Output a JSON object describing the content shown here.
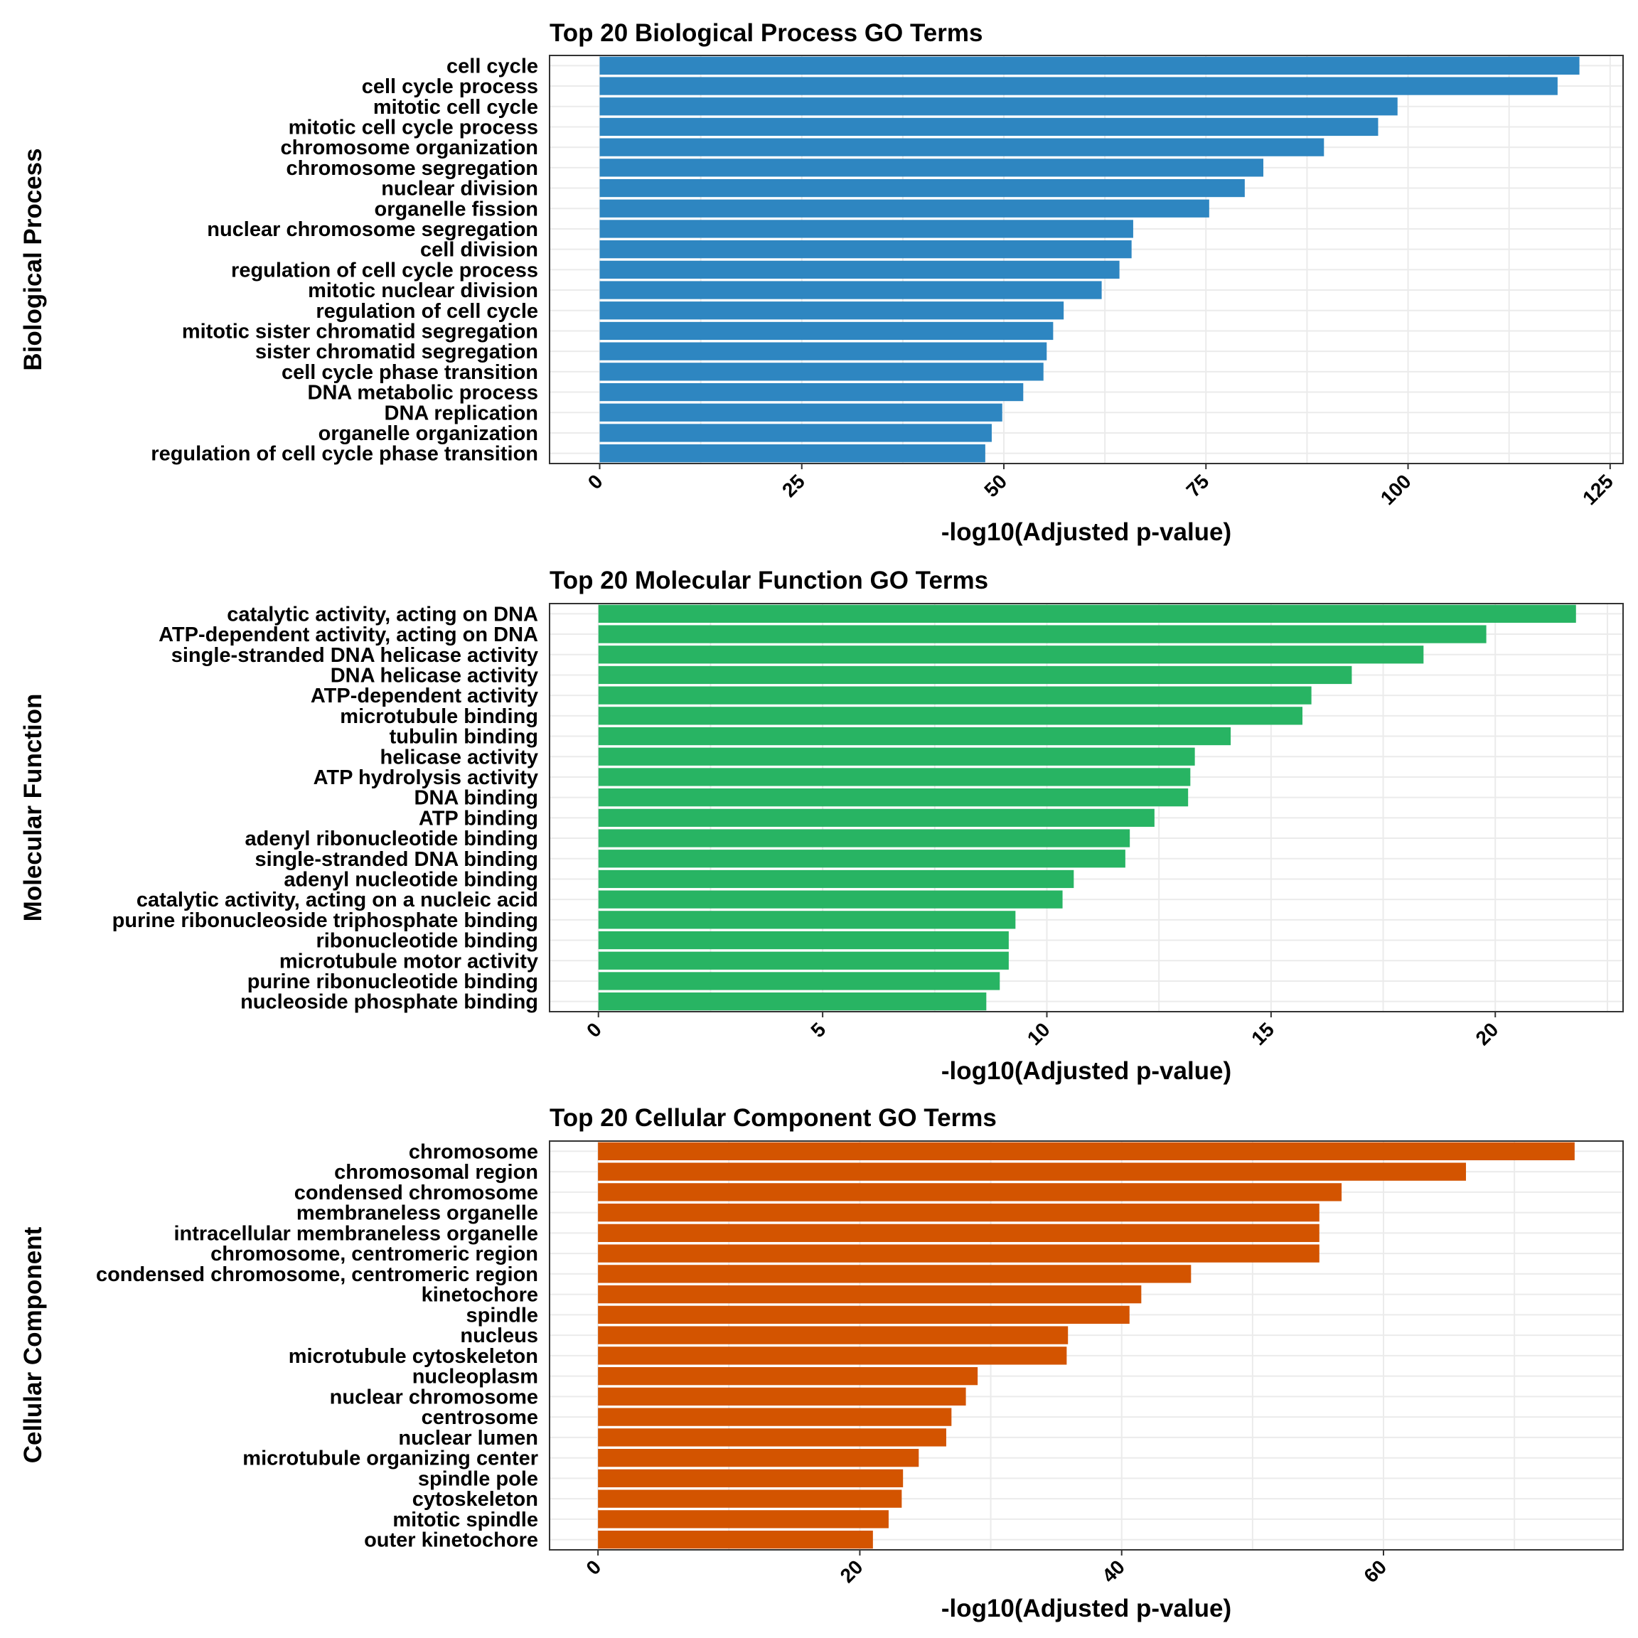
{
  "chart_data": [
    {
      "type": "bar",
      "orientation": "horizontal",
      "title": "Top 20 Biological Process GO Terms",
      "xlabel": "-log10(Adjusted p-value)",
      "ylabel": "Biological Process",
      "xlim": [
        -6.2,
        126.6
      ],
      "xticks": [
        0,
        25,
        50,
        75,
        100,
        125
      ],
      "color": "#2E86C1",
      "grid": true,
      "categories": [
        "cell cycle",
        "cell cycle process",
        "mitotic cell cycle",
        "mitotic cell cycle process",
        "chromosome organization",
        "chromosome segregation",
        "nuclear division",
        "organelle fission",
        "nuclear chromosome segregation",
        "cell division",
        "regulation of cell cycle process",
        "mitotic nuclear division",
        "regulation of cell cycle",
        "mitotic sister chromatid segregation",
        "sister chromatid segregation",
        "cell cycle phase transition",
        "DNA metabolic process",
        "DNA replication",
        "organelle organization",
        "regulation of cell cycle phase transition"
      ],
      "values": [
        121.2,
        118.5,
        98.7,
        96.3,
        89.6,
        82.1,
        79.8,
        75.4,
        66.0,
        65.8,
        64.3,
        62.1,
        57.4,
        56.1,
        55.3,
        54.9,
        52.4,
        49.8,
        48.5,
        47.7
      ]
    },
    {
      "type": "bar",
      "orientation": "horizontal",
      "title": "Top 20 Molecular Function GO Terms",
      "xlabel": "-log10(Adjusted p-value)",
      "ylabel": "Molecular Function",
      "xlim": [
        -1.09,
        22.85
      ],
      "xticks": [
        0,
        5,
        10,
        15,
        20
      ],
      "color": "#28B463",
      "grid": true,
      "categories": [
        "catalytic activity, acting on DNA",
        "ATP-dependent activity, acting on DNA",
        "single-stranded DNA helicase activity",
        "DNA helicase activity",
        "ATP-dependent activity",
        "microtubule binding",
        "tubulin binding",
        "helicase activity",
        "ATP hydrolysis activity",
        "DNA binding",
        "ATP binding",
        "adenyl ribonucleotide binding",
        "single-stranded DNA binding",
        "adenyl nucleotide binding",
        "catalytic activity, acting on a nucleic acid",
        "purine ribonucleoside triphosphate binding",
        "ribonucleotide binding",
        "microtubule motor activity",
        "purine ribonucleotide binding",
        "nucleoside phosphate binding"
      ],
      "values": [
        21.8,
        19.8,
        18.4,
        16.8,
        15.9,
        15.7,
        14.1,
        13.3,
        13.2,
        13.15,
        12.4,
        11.85,
        11.75,
        10.6,
        10.35,
        9.3,
        9.15,
        9.15,
        8.95,
        8.65
      ]
    },
    {
      "type": "bar",
      "orientation": "horizontal",
      "title": "Top 20 Cellular Component GO Terms",
      "xlabel": "-log10(Adjusted p-value)",
      "ylabel": "Cellular Component",
      "xlim": [
        -3.7,
        78.3
      ],
      "xticks": [
        0,
        20,
        40,
        60
      ],
      "color": "#D35400",
      "grid": true,
      "categories": [
        "chromosome",
        "chromosomal region",
        "condensed chromosome",
        "membraneless organelle",
        "intracellular membraneless organelle",
        "chromosome, centromeric region",
        "condensed chromosome, centromeric region",
        "kinetochore",
        "spindle",
        "nucleus",
        "microtubule cytoskeleton",
        "nucleoplasm",
        "nuclear chromosome",
        "centrosome",
        "nuclear lumen",
        "microtubule organizing center",
        "spindle pole",
        "cytoskeleton",
        "mitotic spindle",
        "outer kinetochore"
      ],
      "values": [
        74.6,
        66.3,
        56.8,
        55.1,
        55.1,
        55.1,
        45.3,
        41.5,
        40.6,
        35.9,
        35.8,
        29.0,
        28.1,
        27.0,
        26.6,
        24.5,
        23.3,
        23.2,
        22.2,
        21.0
      ]
    }
  ]
}
